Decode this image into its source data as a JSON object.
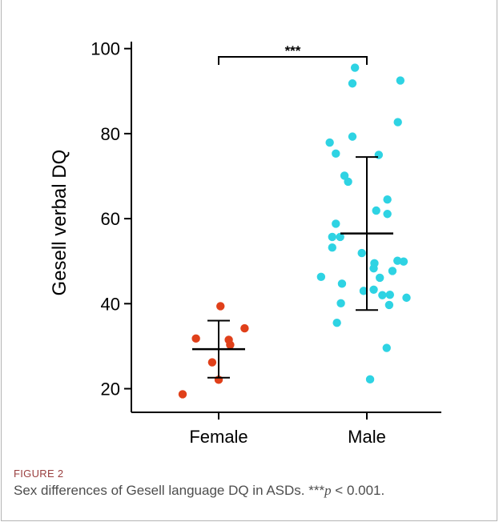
{
  "chart_data": {
    "type": "scatter",
    "ylabel": "Gesell verbal DQ",
    "categories": [
      "Female",
      "Male"
    ],
    "ylim": [
      15,
      102
    ],
    "yticks": [
      20,
      40,
      60,
      80,
      100
    ],
    "grid": false,
    "significance": {
      "between": [
        "Female",
        "Male"
      ],
      "label": "***"
    },
    "series": [
      {
        "category": "Female",
        "color": "#e0401a",
        "mean": 29.3,
        "sd_upper": 36.0,
        "sd_lower": 22.6,
        "points": [
          {
            "jitter": 0.05,
            "y": 39.4
          },
          {
            "jitter": 0.72,
            "y": 34.2
          },
          {
            "jitter": -0.63,
            "y": 31.8
          },
          {
            "jitter": 0.28,
            "y": 31.5
          },
          {
            "jitter": 0.32,
            "y": 30.3
          },
          {
            "jitter": -0.18,
            "y": 26.2
          },
          {
            "jitter": 0.0,
            "y": 22.1
          },
          {
            "jitter": -1.0,
            "y": 18.7
          }
        ]
      },
      {
        "category": "Male",
        "color": "#2ed3e3",
        "mean": 56.5,
        "sd_upper": 74.5,
        "sd_lower": 38.5,
        "points": [
          {
            "jitter": -0.33,
            "y": 95.5
          },
          {
            "jitter": -0.4,
            "y": 91.8
          },
          {
            "jitter": 0.93,
            "y": 92.5
          },
          {
            "jitter": 0.86,
            "y": 82.7
          },
          {
            "jitter": -0.4,
            "y": 79.3
          },
          {
            "jitter": -1.03,
            "y": 77.9
          },
          {
            "jitter": -0.86,
            "y": 75.3
          },
          {
            "jitter": 0.33,
            "y": 75.0
          },
          {
            "jitter": -0.62,
            "y": 70.1
          },
          {
            "jitter": -0.52,
            "y": 68.7
          },
          {
            "jitter": 0.57,
            "y": 64.5
          },
          {
            "jitter": 0.26,
            "y": 61.9
          },
          {
            "jitter": 0.57,
            "y": 61.1
          },
          {
            "jitter": -0.86,
            "y": 58.8
          },
          {
            "jitter": -0.96,
            "y": 55.7
          },
          {
            "jitter": -0.74,
            "y": 55.7
          },
          {
            "jitter": -0.96,
            "y": 53.2
          },
          {
            "jitter": -0.14,
            "y": 51.9
          },
          {
            "jitter": 0.85,
            "y": 50.1
          },
          {
            "jitter": 1.02,
            "y": 49.9
          },
          {
            "jitter": 0.21,
            "y": 49.5
          },
          {
            "jitter": 0.19,
            "y": 48.3
          },
          {
            "jitter": 0.71,
            "y": 47.7
          },
          {
            "jitter": -1.27,
            "y": 46.3
          },
          {
            "jitter": 0.36,
            "y": 46.1
          },
          {
            "jitter": -0.69,
            "y": 44.7
          },
          {
            "jitter": -0.09,
            "y": 43.0
          },
          {
            "jitter": 0.19,
            "y": 43.3
          },
          {
            "jitter": 0.43,
            "y": 42.0
          },
          {
            "jitter": 0.64,
            "y": 42.1
          },
          {
            "jitter": 1.1,
            "y": 41.4
          },
          {
            "jitter": -0.72,
            "y": 40.1
          },
          {
            "jitter": 0.62,
            "y": 39.7
          },
          {
            "jitter": -0.83,
            "y": 35.5
          },
          {
            "jitter": 0.55,
            "y": 29.6
          },
          {
            "jitter": 0.09,
            "y": 22.2
          }
        ]
      }
    ]
  },
  "figure": {
    "label": "FIGURE 2",
    "caption_pre": "Sex differences of Gesell language DQ in ASDs. ***",
    "caption_p": "p",
    "caption_post": " < 0.001."
  }
}
